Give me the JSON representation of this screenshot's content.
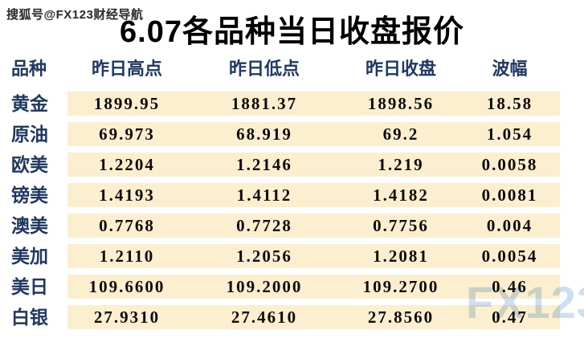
{
  "branding": {
    "watermark_top": "搜狐号@FX123财经导航",
    "watermark_logo": "FX123"
  },
  "title": "6.07各品种当日收盘报价",
  "colors": {
    "stripe": "#fcefcf",
    "header_text": "#1f3864",
    "watermark_blue": "#bcd5ed"
  },
  "table": {
    "headers": [
      "品种",
      "昨日高点",
      "昨日低点",
      "昨日收盘",
      "波幅"
    ],
    "rows": [
      {
        "name": "黄金",
        "high": "1899.95",
        "low": "1881.37",
        "close": "1898.56",
        "range": "18.58"
      },
      {
        "name": "原油",
        "high": "69.973",
        "low": "68.919",
        "close": "69.2",
        "range": "1.054"
      },
      {
        "name": "欧美",
        "high": "1.2204",
        "low": "1.2146",
        "close": "1.219",
        "range": "0.0058"
      },
      {
        "name": "镑美",
        "high": "1.4193",
        "low": "1.4112",
        "close": "1.4182",
        "range": "0.0081"
      },
      {
        "name": "澳美",
        "high": "0.7768",
        "low": "0.7728",
        "close": "0.7756",
        "range": "0.004"
      },
      {
        "name": "美加",
        "high": "1.2110",
        "low": "1.2056",
        "close": "1.2081",
        "range": "0.0054"
      },
      {
        "name": "美日",
        "high": "109.6600",
        "low": "109.2000",
        "close": "109.2700",
        "range": "0.46"
      },
      {
        "name": "白银",
        "high": "27.9310",
        "low": "27.4610",
        "close": "27.8560",
        "range": "0.47"
      }
    ]
  }
}
